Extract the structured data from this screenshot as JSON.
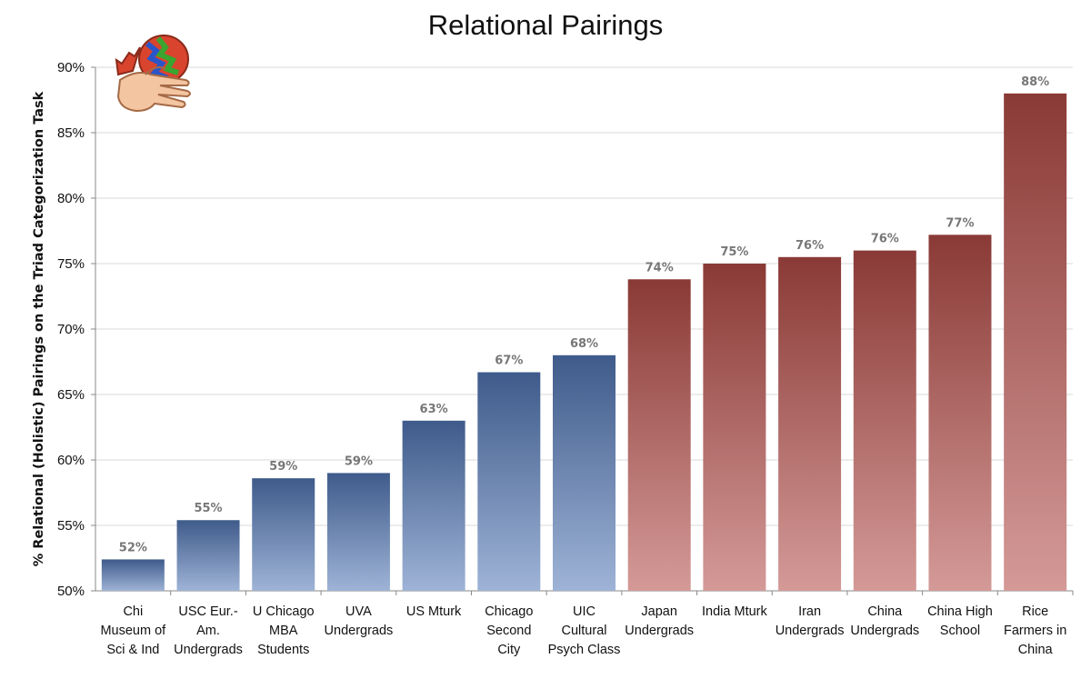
{
  "chart_data": {
    "type": "bar",
    "title": "Relational Pairings",
    "xlabel": "",
    "ylabel": "% Relational (Holistic) Pairings on the Triad Categorization Task",
    "ylim": [
      50,
      90
    ],
    "yticks": [
      50,
      55,
      60,
      65,
      70,
      75,
      80,
      85,
      90
    ],
    "ytick_labels": [
      "50%",
      "55%",
      "60%",
      "65%",
      "70%",
      "75%",
      "80%",
      "85%",
      "90%"
    ],
    "grid": true,
    "categories": [
      "Chi\nMuseum of\nSci & Ind",
      "USC Eur.-\nAm.\nUndergrads",
      "U Chicago\nMBA\nStudents",
      "UVA\nUndergrads",
      "US Mturk",
      "Chicago\nSecond\nCity",
      "UIC\nCultural\nPsych Class",
      "Japan\nUndergrads",
      "India Mturk",
      "Iran\nUndergrads",
      "China\nUndergrads",
      "China High\nSchool",
      "Rice\nFarmers in\nChina"
    ],
    "values": [
      52.4,
      55.4,
      58.6,
      59.0,
      63.0,
      66.7,
      68.0,
      73.8,
      75.0,
      75.5,
      76.0,
      77.2,
      88.0
    ],
    "data_labels": [
      "52%",
      "55%",
      "59%",
      "59%",
      "63%",
      "67%",
      "68%",
      "74%",
      "75%",
      "76%",
      "76%",
      "77%",
      "88%"
    ],
    "groups": [
      "blue",
      "blue",
      "blue",
      "blue",
      "blue",
      "blue",
      "blue",
      "red",
      "red",
      "red",
      "red",
      "red",
      "red"
    ],
    "colors": {
      "blue_top": "#3f5b8b",
      "blue_bottom": "#9eb3d6",
      "red_top": "#8a3a36",
      "red_bottom": "#d49a98",
      "grid": "#d9d9d9",
      "axis": "#888888"
    }
  },
  "logo": {
    "icon": "hand-brain-icon"
  }
}
